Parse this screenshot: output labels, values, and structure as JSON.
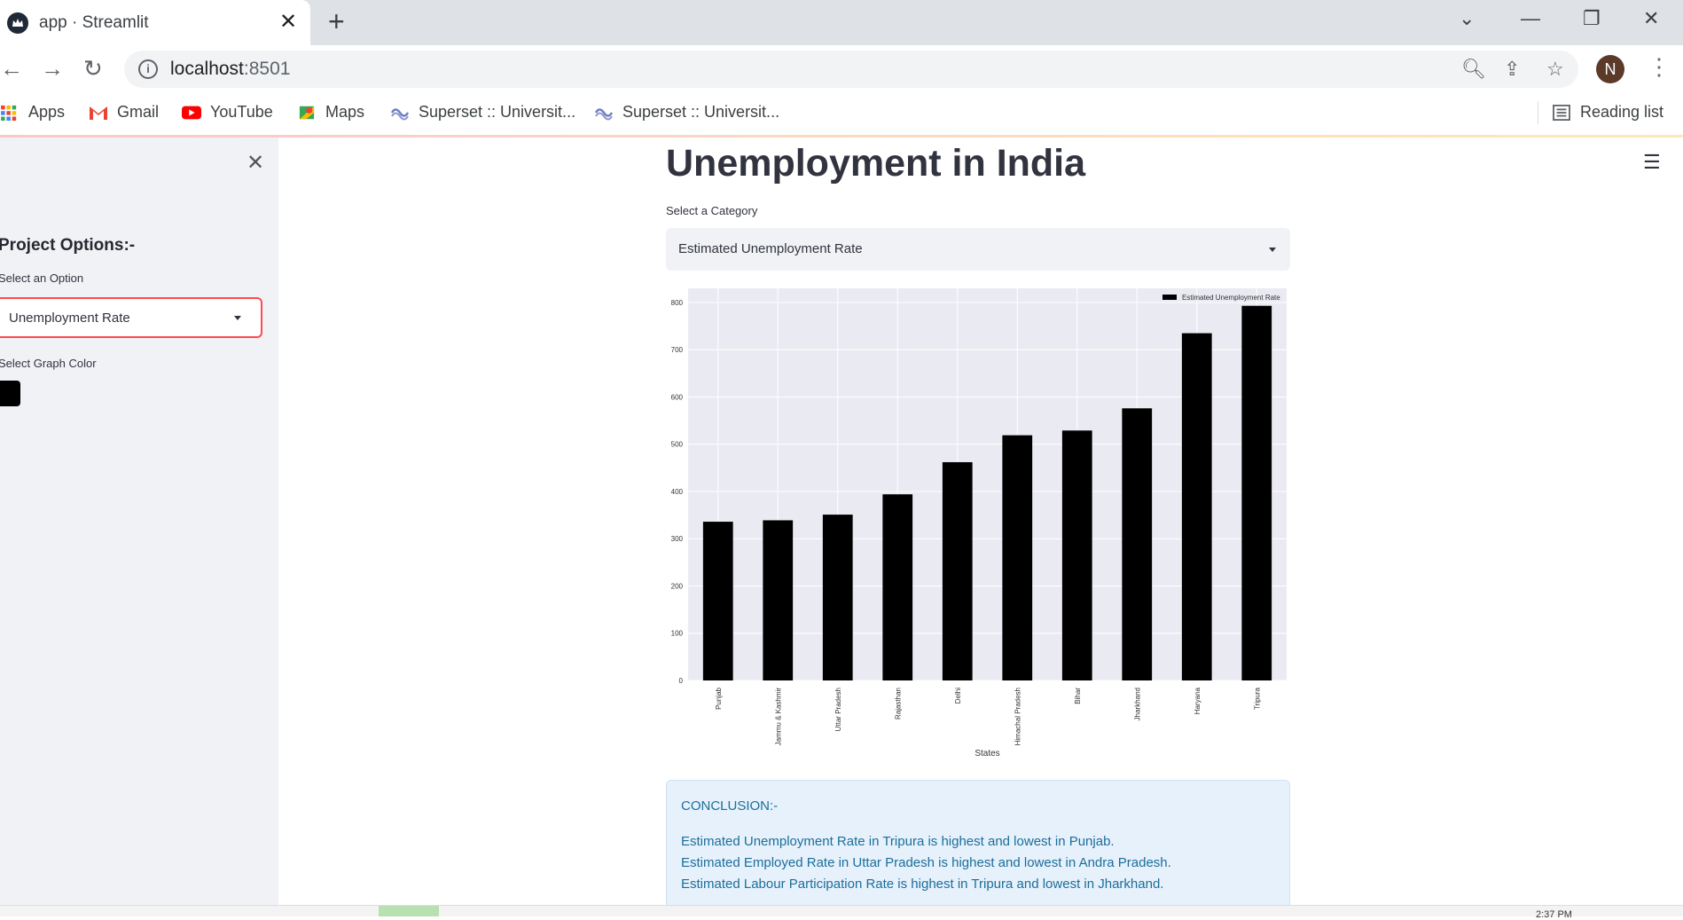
{
  "browser": {
    "tab_title": "app · Streamlit",
    "url_host": "localhost",
    "url_port": ":8501",
    "avatar_letter": "N",
    "bookmarks": [
      "Apps",
      "Gmail",
      "YouTube",
      "Maps",
      "Superset :: Universit...",
      "Superset :: Universit..."
    ],
    "reading_list": "Reading list"
  },
  "sidebar": {
    "title": "Project Options:-",
    "option_label": "Select an Option",
    "option_value": "Unemployment Rate",
    "color_label": "Select Graph Color",
    "color_value": "#000000"
  },
  "main": {
    "title": "Unemployment in India",
    "category_label": "Select a Category",
    "category_value": "Estimated Unemployment Rate",
    "conclusion_title": "CONCLUSION:-",
    "conclusion_lines": [
      "Estimated Unemployment Rate in Tripura is highest and lowest in Punjab.",
      "Estimated Employed Rate in Uttar Pradesh is highest and lowest in Andra Pradesh.",
      "Estimated Labour Participation Rate is highest in Tripura and lowest in Jharkhand."
    ]
  },
  "chart_data": {
    "type": "bar",
    "categories": [
      "Punjab",
      "Jammu & Kashmir",
      "Uttar Pradesh",
      "Rajasthan",
      "Delhi",
      "Himachal Pradesh",
      "Bihar",
      "Jharkhand",
      "Haryana",
      "Tripura"
    ],
    "series": [
      {
        "name": "Estimated Unemployment Rate",
        "values": [
          336,
          339,
          351,
          394,
          462,
          519,
          529,
          576,
          735,
          793
        ]
      }
    ],
    "xlabel": "States",
    "ylabel": "",
    "ylim": [
      0,
      830
    ],
    "yticks": [
      0,
      100,
      200,
      300,
      400,
      500,
      600,
      700,
      800
    ],
    "grid": true,
    "legend": "top-right",
    "bar_color": "#000000",
    "background": "#eaeaf2"
  },
  "status": {
    "clock": "2:37 PM"
  }
}
